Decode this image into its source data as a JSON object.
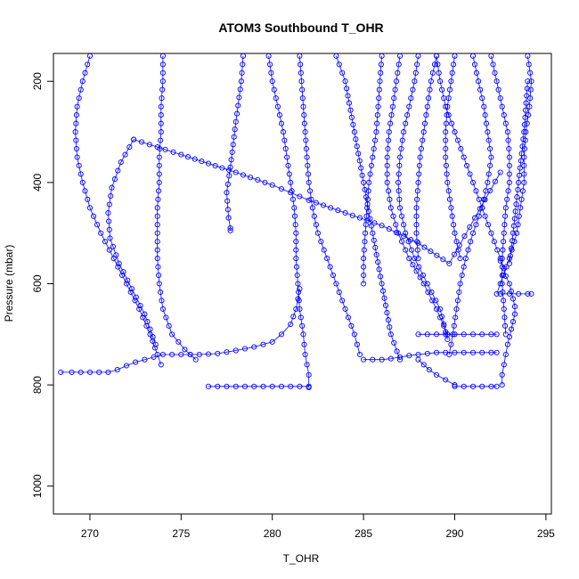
{
  "chart_data": {
    "type": "line",
    "title": "ATOM3 Southbound T_OHR",
    "xlabel": "T_OHR",
    "ylabel": "Pressure (mbar)",
    "xlim": [
      268,
      295.3
    ],
    "ylim": [
      1055,
      145
    ],
    "y_reversed": true,
    "grid": false,
    "x_ticks": [
      270,
      275,
      280,
      285,
      290,
      295
    ],
    "y_ticks": [
      200,
      400,
      600,
      800,
      1000
    ],
    "series_color": "#0000ff",
    "marker": "open-circle",
    "series": [
      {
        "x": [
          78.4,
          78.3,
          78.0,
          77.7,
          77.5,
          77.6,
          77.7,
          77.7
        ],
        "y": [
          150,
          200,
          280,
          370,
          420,
          470,
          490,
          495
        ],
        "offset": 200
      },
      {
        "x": [
          70.0,
          69.6,
          69.3,
          69.2,
          69.3,
          69.6,
          70.0,
          70.6,
          71.3,
          72.0,
          72.7,
          73.3,
          73.7,
          73.9
        ],
        "y": [
          150,
          200,
          250,
          300,
          350,
          400,
          450,
          500,
          550,
          600,
          650,
          700,
          740,
          760
        ],
        "offset": 200
      },
      {
        "x": [
          74.0,
          74.0,
          73.9,
          73.9,
          73.8,
          73.8,
          73.7,
          73.7,
          73.7,
          73.8,
          74.0,
          74.5,
          75.2,
          75.8
        ],
        "y": [
          150,
          200,
          250,
          300,
          350,
          400,
          450,
          500,
          550,
          600,
          650,
          700,
          730,
          750
        ],
        "offset": 200
      },
      {
        "x": [
          68.4,
          69.0,
          70.0,
          71.0,
          71.5,
          72.0,
          72.5,
          73.0,
          73.5,
          74.0,
          75.0,
          76.0,
          77.0,
          78.0,
          79.0,
          80.0,
          80.5,
          81.0,
          81.3,
          81.5
        ],
        "y": [
          775,
          775,
          775,
          775,
          770,
          762,
          755,
          750,
          745,
          740,
          740,
          740,
          738,
          732,
          725,
          715,
          700,
          680,
          650,
          610
        ],
        "offset": 200
      },
      {
        "x": [
          72.4,
          71.7,
          71.2,
          71.0,
          71.1,
          71.6,
          72.3,
          73.0,
          73.6
        ],
        "y": [
          315,
          360,
          410,
          460,
          510,
          560,
          610,
          660,
          720
        ],
        "offset": 200
      },
      {
        "x": [
          72.4,
          75.0,
          78.0,
          80.0,
          81.0,
          82.0,
          84.0,
          86.0,
          88.0,
          89.7,
          92.5
        ],
        "y": [
          315,
          345,
          380,
          405,
          420,
          435,
          460,
          485,
          520,
          560,
          380
        ],
        "offset": 200
      },
      {
        "x": [
          79.8,
          80.0,
          80.3,
          80.6,
          80.8,
          81.0,
          81.2,
          81.3,
          81.3,
          81.4,
          81.5,
          81.7,
          81.8,
          82.0,
          82.0
        ],
        "y": [
          150,
          200,
          250,
          300,
          350,
          400,
          450,
          500,
          550,
          600,
          650,
          700,
          740,
          780,
          805
        ],
        "offset": 200
      },
      {
        "x": [
          76.5,
          77.0,
          78.0,
          79.0,
          80.0,
          81.0,
          81.5,
          82.0
        ],
        "y": [
          803,
          803,
          803,
          803,
          803,
          803,
          803,
          803
        ],
        "offset": 200
      },
      {
        "x": [
          81.5,
          81.6,
          81.7,
          81.8,
          81.9,
          82.0,
          82.2,
          82.5,
          83.0,
          83.5,
          84.0,
          84.5,
          84.8
        ],
        "y": [
          150,
          200,
          250,
          300,
          350,
          400,
          450,
          500,
          550,
          600,
          650,
          700,
          740
        ],
        "offset": 200
      },
      {
        "x": [
          83.5,
          84.0,
          84.5,
          85.0,
          85.5,
          86.0,
          86.5,
          87.0
        ],
        "y": [
          150,
          200,
          300,
          400,
          500,
          600,
          700,
          750
        ],
        "offset": 200
      },
      {
        "x": [
          85.0,
          86.0,
          86.5,
          87.0,
          87.5,
          88.0,
          88.5,
          89.0,
          90.0,
          91.0,
          92.0,
          92.3
        ],
        "y": [
          750,
          750,
          748,
          745,
          742,
          740,
          738,
          736,
          736,
          736,
          736,
          736
        ],
        "offset": 200
      },
      {
        "x": [
          86.0,
          85.9,
          85.8,
          85.7,
          85.5,
          85.3,
          85.2,
          85.1,
          85.0,
          85.0
        ],
        "y": [
          150,
          200,
          250,
          300,
          350,
          400,
          450,
          500,
          550,
          600
        ],
        "offset": 200
      },
      {
        "x": [
          87.0,
          86.8,
          86.6,
          86.4,
          86.3,
          86.3,
          86.5,
          86.9,
          87.5,
          88.3,
          89.0,
          89.6
        ],
        "y": [
          150,
          200,
          250,
          300,
          350,
          400,
          450,
          500,
          550,
          600,
          650,
          700
        ],
        "offset": 200
      },
      {
        "x": [
          88.0,
          87.8,
          87.5,
          87.2,
          87.0,
          86.9,
          87.0,
          87.3,
          87.8,
          88.5,
          89.2,
          89.6
        ],
        "y": [
          150,
          200,
          250,
          300,
          350,
          400,
          450,
          500,
          550,
          600,
          650,
          710
        ],
        "offset": 200
      },
      {
        "x": [
          89.0,
          88.7,
          88.5,
          88.3,
          88.1,
          88.0,
          87.9,
          87.9,
          88.0
        ],
        "y": [
          150,
          200,
          250,
          300,
          350,
          400,
          450,
          500,
          550
        ],
        "offset": 200
      },
      {
        "x": [
          90.0,
          89.8,
          89.6,
          89.5,
          89.5,
          89.6,
          89.8,
          90.0,
          90.3
        ],
        "y": [
          150,
          200,
          250,
          300,
          350,
          400,
          450,
          500,
          550
        ],
        "offset": 200
      },
      {
        "x": [
          88.0,
          88.5,
          89.0,
          89.5,
          90.0,
          90.5,
          91.0,
          91.5,
          92.0,
          92.3
        ],
        "y": [
          700,
          700,
          700,
          700,
          700,
          700,
          700,
          700,
          700,
          700
        ],
        "offset": 200
      },
      {
        "x": [
          91.0,
          91.3,
          91.6,
          91.8,
          92.0,
          91.8,
          91.5,
          91.0,
          90.6,
          90.3,
          90.1,
          89.9,
          89.7
        ],
        "y": [
          150,
          200,
          250,
          300,
          350,
          400,
          450,
          500,
          550,
          600,
          650,
          700,
          740
        ],
        "offset": 200
      },
      {
        "x": [
          89.0,
          89.2,
          89.5,
          90.0,
          90.5,
          91.0,
          91.5,
          92.0,
          92.5
        ],
        "y": [
          150,
          200,
          250,
          300,
          350,
          400,
          450,
          500,
          550
        ],
        "offset": 200
      },
      {
        "x": [
          92.0,
          92.3,
          92.6,
          92.9,
          93.0,
          93.0,
          92.8,
          92.7,
          92.6,
          92.6,
          92.7,
          92.8
        ],
        "y": [
          150,
          200,
          250,
          300,
          350,
          400,
          450,
          500,
          550,
          600,
          650,
          700
        ],
        "offset": 200
      },
      {
        "x": [
          94.0,
          94.2,
          94.1,
          93.9,
          93.8,
          93.8,
          93.6,
          93.4,
          93.0,
          92.5,
          92.3
        ],
        "y": [
          150,
          200,
          250,
          300,
          350,
          400,
          450,
          500,
          550,
          600,
          620
        ],
        "offset": 200
      },
      {
        "x": [
          92.5,
          93.0,
          93.5,
          94.0,
          94.2
        ],
        "y": [
          620,
          620,
          620,
          620,
          620
        ],
        "offset": 200
      },
      {
        "x": [
          92.5,
          92.7,
          92.8,
          93.0,
          93.1,
          93.2,
          93.3,
          93.3,
          93.2,
          93.1,
          93.0,
          92.9,
          92.8,
          92.7,
          92.6,
          92.6
        ],
        "y": [
          555,
          570,
          585,
          600,
          615,
          630,
          645,
          660,
          675,
          690,
          705,
          720,
          740,
          760,
          780,
          800
        ],
        "offset": 200
      },
      {
        "x": [
          90.0,
          90.5,
          91.0,
          91.5,
          92.0,
          92.3
        ],
        "y": [
          803,
          803,
          803,
          803,
          803,
          803
        ],
        "offset": 200
      },
      {
        "x": [
          88.0,
          88.3,
          88.6,
          89.0,
          89.5,
          90.0
        ],
        "y": [
          750,
          760,
          770,
          780,
          790,
          800
        ],
        "offset": 200
      },
      {
        "x": [
          94.0,
          93.8,
          93.5,
          93.2,
          93.0
        ],
        "y": [
          200,
          300,
          400,
          500,
          560
        ],
        "offset": 200
      }
    ]
  }
}
